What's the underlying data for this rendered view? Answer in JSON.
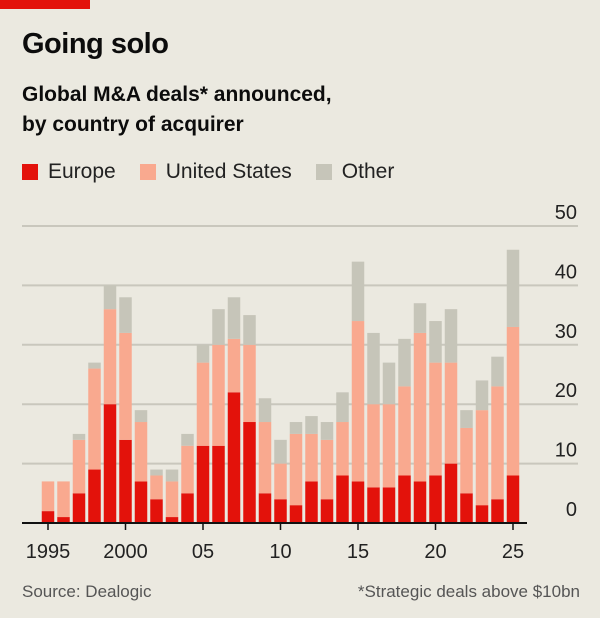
{
  "header": {
    "title": "Going solo",
    "subtitle_line1": "Global M&A deals* announced,",
    "subtitle_line2": "by country of acquirer"
  },
  "footer": {
    "source": "Source: Dealogic",
    "note": "*Strategic deals above $10bn"
  },
  "chart_data": {
    "type": "bar",
    "stacked": true,
    "title": "Going solo",
    "subtitle": "Global M&A deals* announced, by country of acquirer",
    "legend_placement": "top-left",
    "grid": true,
    "ylim": [
      0,
      50
    ],
    "yticks": [
      "0",
      "10",
      "20",
      "30",
      "40",
      "50"
    ],
    "xtick_labels": [
      "1995",
      "2000",
      "05",
      "10",
      "15",
      "20",
      "25"
    ],
    "categories": [
      1995,
      1996,
      1997,
      1998,
      1999,
      2000,
      2001,
      2002,
      2003,
      2004,
      2005,
      2006,
      2007,
      2008,
      2009,
      2010,
      2011,
      2012,
      2013,
      2014,
      2015,
      2016,
      2017,
      2018,
      2019,
      2020,
      2021,
      2022,
      2023,
      2024,
      2025
    ],
    "series": [
      {
        "name": "Europe",
        "color": "#e3120b",
        "values": [
          2,
          1,
          5,
          9,
          20,
          14,
          7,
          4,
          1,
          5,
          13,
          13,
          22,
          17,
          5,
          4,
          3,
          7,
          4,
          8,
          7,
          6,
          6,
          8,
          7,
          8,
          10,
          5,
          3,
          4,
          8
        ]
      },
      {
        "name": "United States",
        "color": "#f9a98f",
        "values": [
          5,
          6,
          9,
          17,
          16,
          18,
          10,
          4,
          6,
          8,
          14,
          17,
          9,
          13,
          12,
          6,
          12,
          8,
          10,
          9,
          27,
          14,
          14,
          15,
          25,
          19,
          17,
          11,
          16,
          19,
          25
        ]
      },
      {
        "name": "Other",
        "color": "#c6c5b9",
        "values": [
          0,
          0,
          1,
          1,
          4,
          6,
          2,
          1,
          2,
          2,
          3,
          6,
          7,
          5,
          4,
          4,
          2,
          3,
          3,
          5,
          10,
          12,
          7,
          8,
          5,
          7,
          9,
          3,
          5,
          5,
          13
        ]
      }
    ]
  }
}
